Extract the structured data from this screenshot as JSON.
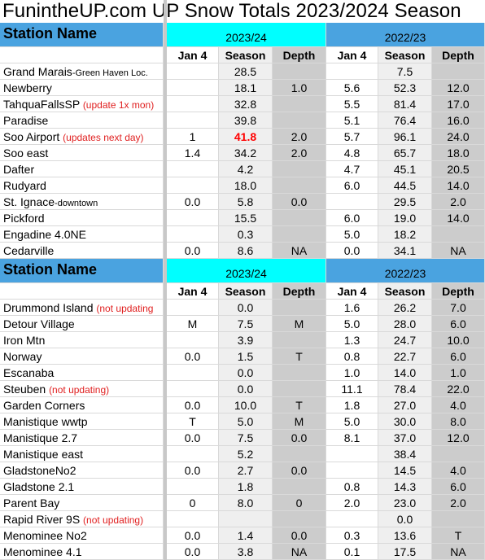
{
  "title": "FunintheUP.com  UP Snow Totals 2023/2024 Season",
  "sections": [
    {
      "station_header": "Station Name",
      "season_current": "2023/24",
      "season_prior": "2022/23",
      "columns": [
        "Jan 4",
        "Season",
        "Depth",
        "Jan 4",
        "Season",
        "Depth"
      ],
      "rows": [
        {
          "name": "Grand Marais",
          "sub": "-Green Haven Loc.",
          "note": "",
          "v": [
            "",
            "28.5",
            "",
            "",
            "7.5",
            ""
          ]
        },
        {
          "name": "Newberry",
          "sub": "",
          "note": "",
          "v": [
            "",
            "18.1",
            "1.0",
            "5.6",
            "52.3",
            "12.0"
          ]
        },
        {
          "name": "TahquaFallsSP",
          "sub": "",
          "note": "(update 1x mon)",
          "v": [
            "",
            "32.8",
            "",
            "5.5",
            "81.4",
            "17.0"
          ]
        },
        {
          "name": "Paradise",
          "sub": "",
          "note": "",
          "v": [
            "",
            "39.8",
            "",
            "5.1",
            "76.4",
            "16.0"
          ]
        },
        {
          "name": "Soo Airport",
          "sub": "",
          "note": "(updates next day)",
          "v": [
            "1",
            "41.8",
            "2.0",
            "5.7",
            "96.1",
            "24.0"
          ],
          "highlight_season": true
        },
        {
          "name": "Soo east",
          "sub": "",
          "note": "",
          "v": [
            "1.4",
            "34.2",
            "2.0",
            "4.8",
            "65.7",
            "18.0"
          ]
        },
        {
          "name": "Dafter",
          "sub": "",
          "note": "",
          "v": [
            "",
            "4.2",
            "",
            "4.7",
            "45.1",
            "20.5"
          ]
        },
        {
          "name": "Rudyard",
          "sub": "",
          "note": "",
          "v": [
            "",
            "18.0",
            "",
            "6.0",
            "44.5",
            "14.0"
          ]
        },
        {
          "name": "St. Ignace",
          "sub": "-downtown",
          "note": "",
          "v": [
            "0.0",
            "5.8",
            "0.0",
            "",
            "29.5",
            "2.0"
          ]
        },
        {
          "name": "Pickford",
          "sub": "",
          "note": "",
          "v": [
            "",
            "15.5",
            "",
            "6.0",
            "19.0",
            "14.0"
          ]
        },
        {
          "name": "Engadine 4.0NE",
          "sub": "",
          "note": "",
          "v": [
            "",
            "0.3",
            "",
            "5.0",
            "18.2",
            ""
          ]
        },
        {
          "name": "Cedarville",
          "sub": "",
          "note": "",
          "v": [
            "0.0",
            "8.6",
            "NA",
            "0.0",
            "34.1",
            "NA"
          ]
        }
      ]
    },
    {
      "station_header": "Station Name",
      "season_current": "2023/24",
      "season_prior": "2022/23",
      "columns": [
        "Jan 4",
        "Season",
        "Depth",
        "Jan 4",
        "Season",
        "Depth"
      ],
      "rows": [
        {
          "name": "Drummond Island",
          "sub": "",
          "note": "(not updating",
          "v": [
            "",
            "0.0",
            "",
            "1.6",
            "26.2",
            "7.0"
          ]
        },
        {
          "name": "Detour Village",
          "sub": "",
          "note": "",
          "v": [
            "M",
            "7.5",
            "M",
            "5.0",
            "28.0",
            "6.0"
          ]
        },
        {
          "name": "Iron Mtn",
          "sub": "",
          "note": "",
          "v": [
            "",
            "3.9",
            "",
            "1.3",
            "24.7",
            "10.0"
          ]
        },
        {
          "name": "Norway",
          "sub": "",
          "note": "",
          "v": [
            "0.0",
            "1.5",
            "T",
            "0.8",
            "22.7",
            "6.0"
          ]
        },
        {
          "name": "Escanaba",
          "sub": "",
          "note": "",
          "v": [
            "",
            "0.0",
            "",
            "1.0",
            "14.0",
            "1.0"
          ]
        },
        {
          "name": "Steuben",
          "sub": "",
          "note": "(not updating)",
          "v": [
            "",
            "0.0",
            "",
            "11.1",
            "78.4",
            "22.0"
          ]
        },
        {
          "name": "Garden Corners",
          "sub": "",
          "note": "",
          "v": [
            "0.0",
            "10.0",
            "T",
            "1.8",
            "27.0",
            "4.0"
          ]
        },
        {
          "name": "Manistique wwtp",
          "sub": "",
          "note": "",
          "v": [
            "T",
            "5.0",
            "M",
            "5.0",
            "30.0",
            "8.0"
          ]
        },
        {
          "name": "Manistique 2.7",
          "sub": "",
          "note": "",
          "v": [
            "0.0",
            "7.5",
            "0.0",
            "8.1",
            "37.0",
            "12.0"
          ]
        },
        {
          "name": "Manistique east",
          "sub": "",
          "note": "",
          "v": [
            "",
            "5.2",
            "",
            "",
            "38.4",
            ""
          ]
        },
        {
          "name": "GladstoneNo2",
          "sub": "",
          "note": "",
          "v": [
            "0.0",
            "2.7",
            "0.0",
            "",
            "14.5",
            "4.0"
          ]
        },
        {
          "name": "Gladstone 2.1",
          "sub": "",
          "note": "",
          "v": [
            "",
            "1.8",
            "",
            "0.8",
            "14.3",
            "6.0"
          ]
        },
        {
          "name": "Parent Bay",
          "sub": "",
          "note": "",
          "v": [
            "0",
            "8.0",
            "0",
            "2.0",
            "23.0",
            "2.0"
          ]
        },
        {
          "name": "Rapid River 9S",
          "sub": "",
          "note": "(not updating)",
          "v": [
            "",
            "",
            "",
            "",
            "0.0",
            ""
          ]
        },
        {
          "name": "Menominee No2",
          "sub": "",
          "note": "",
          "v": [
            "0.0",
            "1.4",
            "0.0",
            "0.3",
            "13.6",
            "T"
          ]
        },
        {
          "name": "Menominee 4.1",
          "sub": "",
          "note": "",
          "v": [
            "0.0",
            "3.8",
            "NA",
            "0.1",
            "17.5",
            "NA"
          ]
        }
      ]
    }
  ],
  "colors": {
    "blue": "#4aa3e0",
    "cyan": "#00ffff",
    "highlight": "#ff0000",
    "note": "#e02020"
  }
}
